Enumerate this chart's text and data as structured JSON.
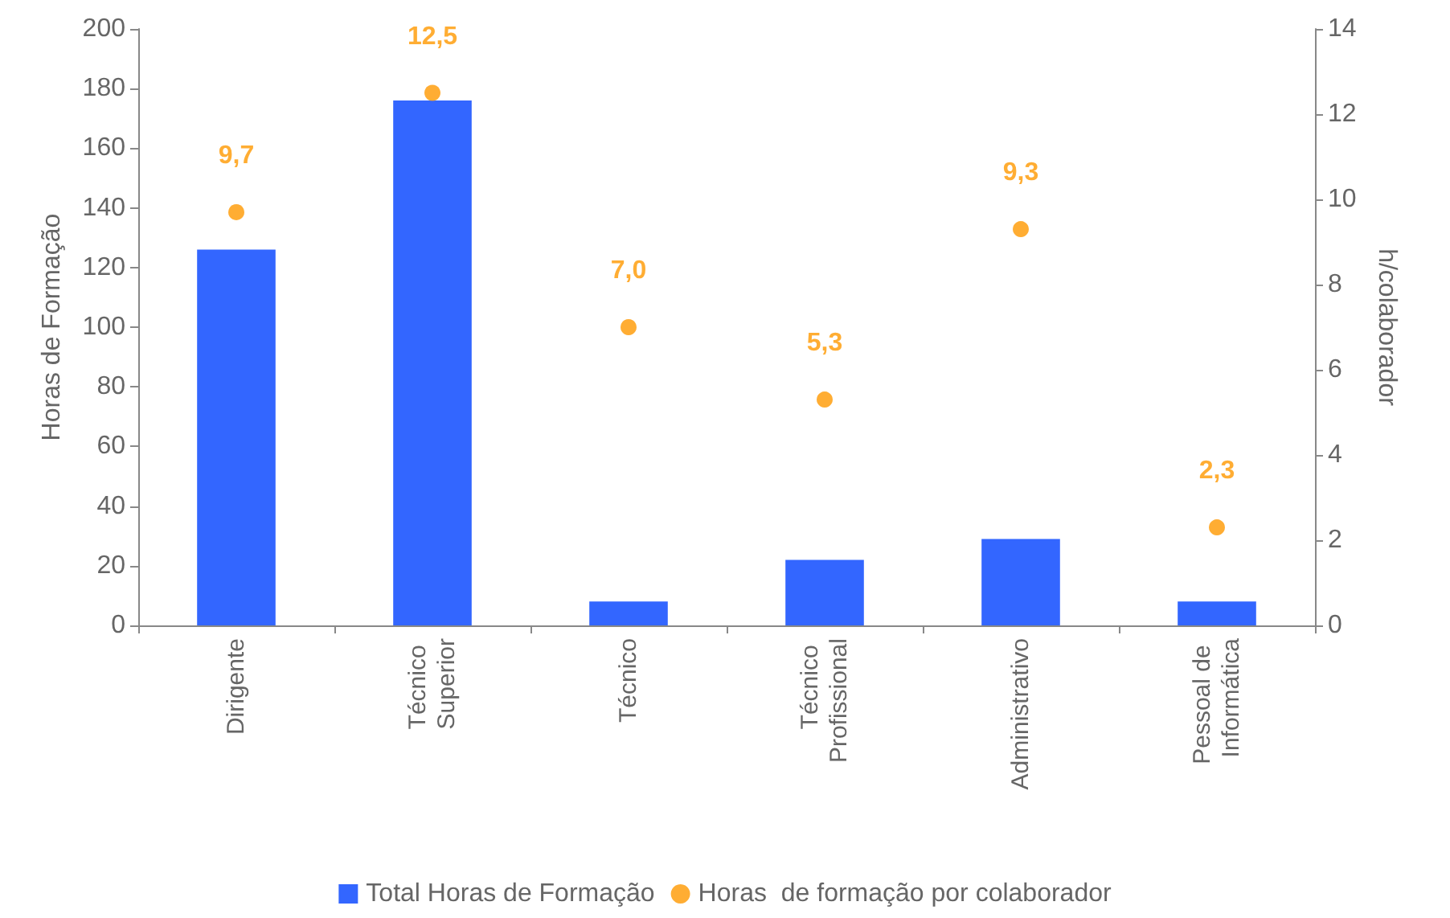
{
  "chart_data": {
    "type": "bar",
    "ylabel": "Horas de Formação",
    "y2label": "h/colaborador",
    "categories": [
      "Dirigente",
      "Técnico Superior",
      "Técnico",
      "Técnico Profissional",
      "Administrativo",
      "Pessoal de Informática"
    ],
    "series": [
      {
        "name": "Total Horas de Formação",
        "color": "#3366ff",
        "values": [
          126,
          176,
          8,
          22,
          29,
          8
        ]
      },
      {
        "name": "Horas  de formação por colaborador",
        "type": "scatter",
        "axis": "y2",
        "color": "#ff9900",
        "values": [
          9.7,
          12.5,
          7.0,
          5.3,
          9.3,
          2.3
        ],
        "value_labels": [
          "9,7",
          "12,5",
          "7,0",
          "5,3",
          "9,3",
          "2,3"
        ]
      }
    ],
    "ylim": [
      0,
      200
    ],
    "yticks": [
      0,
      20,
      40,
      60,
      80,
      100,
      120,
      140,
      160,
      180,
      200
    ],
    "y2lim": [
      0,
      14
    ],
    "y2ticks": [
      0,
      2,
      4,
      6,
      8,
      10,
      12,
      14
    ],
    "grid": false,
    "legend": "bottom",
    "marker": "circle"
  }
}
